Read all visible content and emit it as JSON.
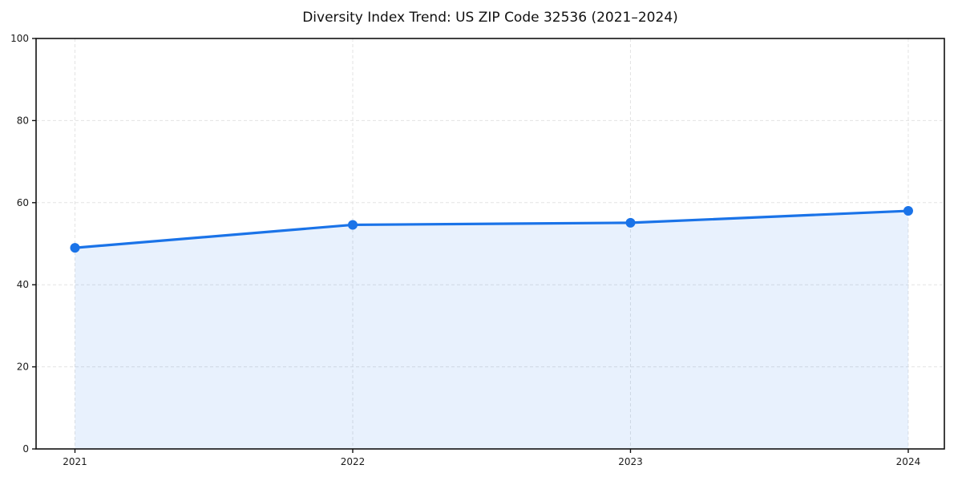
{
  "page": {
    "background": "#ffffff"
  },
  "chart_data": {
    "type": "line",
    "title": "Diversity Index Trend: US ZIP Code 32536 (2021–2024)",
    "x": [
      2021,
      2022,
      2023,
      2024
    ],
    "series": [
      {
        "name": "Diversity Index",
        "values": [
          49.0,
          54.6,
          55.1,
          58.0
        ]
      }
    ],
    "xlabel": "",
    "ylabel": "",
    "xlim": [
      2020.86,
      2024.13
    ],
    "ylim": [
      0,
      100
    ],
    "xticks": [
      2021,
      2022,
      2023,
      2024
    ],
    "xtick_labels": [
      "2021",
      "2022",
      "2023",
      "2024"
    ],
    "yticks": [
      0,
      20,
      40,
      60,
      80,
      100
    ],
    "ytick_labels": [
      "0",
      "20",
      "40",
      "60",
      "80",
      "100"
    ],
    "grid": true,
    "grid_style": "dashed",
    "legend": "none",
    "area_fill": true,
    "marker": "circle",
    "colors": {
      "line": "#1a73e8",
      "marker": "#1a73e8",
      "area_fill": "rgba(26,115,232,0.10)",
      "grid": "#e3e3e3",
      "spine": "#111111",
      "tick_label": "#1a1a1a",
      "title": "#111111",
      "background": "#ffffff"
    }
  }
}
